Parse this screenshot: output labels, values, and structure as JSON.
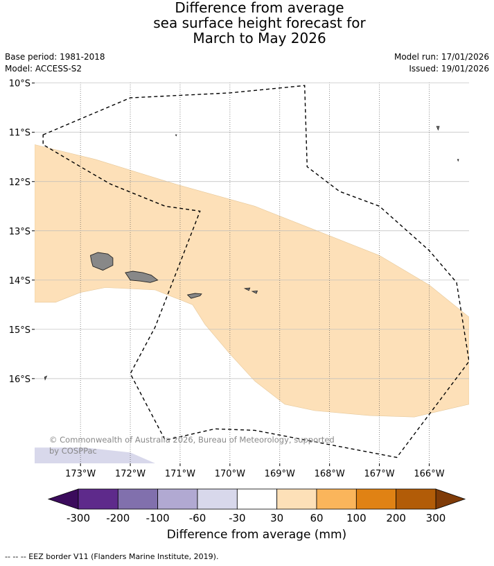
{
  "title_lines": [
    "Difference from average",
    "sea surface height forecast for",
    "March to May 2026"
  ],
  "meta_left": {
    "base_period": "Base period: 1981-2018",
    "model": "Model: ACCESS-S2"
  },
  "meta_right": {
    "model_run": "Model run: 17/01/2026",
    "issued": "Issued: 19/01/2026"
  },
  "map": {
    "lon_range": [
      -173.92,
      -165.2
    ],
    "lat_range": [
      -17.72,
      -9.99
    ],
    "lon_ticks": [
      -173,
      -172,
      -171,
      -170,
      -169,
      -168,
      -167,
      -166
    ],
    "lon_tick_labels": [
      "173°W",
      "172°W",
      "171°W",
      "170°W",
      "169°W",
      "168°W",
      "167°W",
      "166°W"
    ],
    "lat_ticks": [
      -10,
      -11,
      -12,
      -13,
      -14,
      -15,
      -16
    ],
    "lat_tick_labels": [
      "10°S",
      "11°S",
      "12°S",
      "13°S",
      "14°S",
      "15°S",
      "16°S"
    ],
    "anomaly_30_60_mm_region": [
      [
        -173.92,
        -11.25
      ],
      [
        -172.7,
        -11.55
      ],
      [
        -171.1,
        -12.05
      ],
      [
        -169.5,
        -12.5
      ],
      [
        -168.5,
        -12.9
      ],
      [
        -167.0,
        -13.5
      ],
      [
        -166.0,
        -14.1
      ],
      [
        -165.2,
        -14.75
      ],
      [
        -165.2,
        -16.52
      ],
      [
        -166.3,
        -16.78
      ],
      [
        -167.2,
        -16.75
      ],
      [
        -168.3,
        -16.65
      ],
      [
        -168.9,
        -16.52
      ],
      [
        -169.5,
        -16.05
      ],
      [
        -170.0,
        -15.5
      ],
      [
        -170.5,
        -14.9
      ],
      [
        -170.75,
        -14.5
      ],
      [
        -171.5,
        -14.2
      ],
      [
        -172.5,
        -14.15
      ],
      [
        -173.0,
        -14.25
      ],
      [
        -173.5,
        -14.45
      ],
      [
        -173.92,
        -14.45
      ]
    ],
    "anomaly_minus60_minus30_mm_region": [
      [
        -173.92,
        -17.4
      ],
      [
        -172.9,
        -17.4
      ],
      [
        -172.0,
        -17.5
      ],
      [
        -171.5,
        -17.72
      ],
      [
        -173.92,
        -17.72
      ]
    ],
    "land": {
      "savaii": [
        [
          -172.8,
          -13.5
        ],
        [
          -172.65,
          -13.44
        ],
        [
          -172.45,
          -13.47
        ],
        [
          -172.35,
          -13.55
        ],
        [
          -172.35,
          -13.7
        ],
        [
          -172.55,
          -13.8
        ],
        [
          -172.75,
          -13.72
        ],
        [
          -172.78,
          -13.62
        ]
      ],
      "upolu": [
        [
          -172.1,
          -13.85
        ],
        [
          -171.95,
          -13.82
        ],
        [
          -171.75,
          -13.85
        ],
        [
          -171.58,
          -13.9
        ],
        [
          -171.45,
          -14.0
        ],
        [
          -171.6,
          -14.05
        ],
        [
          -171.8,
          -14.02
        ],
        [
          -172.0,
          -14.0
        ]
      ],
      "tutuila": [
        [
          -170.85,
          -14.3
        ],
        [
          -170.7,
          -14.27
        ],
        [
          -170.57,
          -14.28
        ],
        [
          -170.6,
          -14.32
        ],
        [
          -170.78,
          -14.37
        ]
      ],
      "manua_1": [
        [
          -169.7,
          -14.17
        ],
        [
          -169.6,
          -14.16
        ],
        [
          -169.62,
          -14.21
        ]
      ],
      "manua_2": [
        [
          -169.55,
          -14.23
        ],
        [
          -169.45,
          -14.22
        ],
        [
          -169.47,
          -14.27
        ]
      ],
      "swains": [
        [
          -171.09,
          -11.05
        ],
        [
          -171.07,
          -11.05
        ],
        [
          -171.08,
          -11.07
        ]
      ],
      "atoll_ne": [
        [
          -165.85,
          -10.88
        ],
        [
          -165.8,
          -10.88
        ],
        [
          -165.82,
          -10.95
        ]
      ],
      "atoll_e": [
        [
          -165.43,
          -11.55
        ],
        [
          -165.41,
          -11.55
        ],
        [
          -165.42,
          -11.58
        ]
      ],
      "atoll_sw": [
        [
          -173.72,
          -15.97
        ],
        [
          -173.68,
          -15.95
        ],
        [
          -173.71,
          -16.02
        ]
      ]
    },
    "eez_border": [
      [
        -173.75,
        -11.05
      ],
      [
        -172.0,
        -10.3
      ],
      [
        -170.0,
        -10.2
      ],
      [
        -168.5,
        -10.05
      ],
      [
        -168.45,
        -11.7
      ],
      [
        -167.8,
        -12.2
      ],
      [
        -167.0,
        -12.5
      ],
      [
        -166.0,
        -13.4
      ],
      [
        -165.45,
        -14.05
      ],
      [
        -165.2,
        -15.65
      ],
      [
        -166.65,
        -17.6
      ],
      [
        -169.5,
        -17.05
      ],
      [
        -170.3,
        -17.02
      ],
      [
        -171.3,
        -17.25
      ],
      [
        -172.0,
        -15.9
      ],
      [
        -171.5,
        -14.95
      ],
      [
        -170.6,
        -12.6
      ],
      [
        -171.3,
        -12.5
      ],
      [
        -172.4,
        -12.05
      ],
      [
        -173.0,
        -11.7
      ],
      [
        -173.75,
        -11.25
      ]
    ],
    "copyright_lines": [
      "© Commonwealth of Australia 2026, Bureau of Meteorology, supported",
      "by COSPPac"
    ]
  },
  "colorbar": {
    "title": "Difference from average (mm)",
    "tick_labels": [
      "-300",
      "-200",
      "-100",
      "-60",
      "-30",
      "30",
      "60",
      "100",
      "200",
      "300"
    ],
    "bin_colors": [
      "#5e2a8b",
      "#8170ad",
      "#b1a9d2",
      "#d8d8eb",
      "#ffffff",
      "#fde0b8",
      "#fab55b",
      "#e08214",
      "#b25c08"
    ],
    "under_color": "#3b0b5c",
    "over_color": "#7f3b08"
  },
  "footnote": "-- -- -- EEZ border V11 (Flanders Marine Institute, 2019)."
}
